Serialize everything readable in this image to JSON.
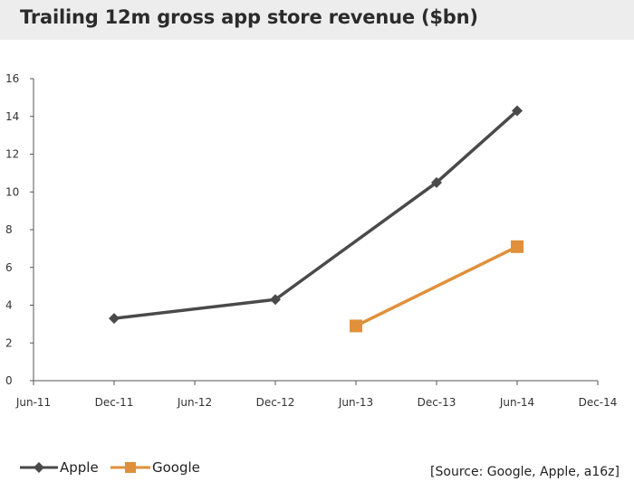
{
  "title": "Trailing 12m gross app store revenue ($bn)",
  "source": "[Source: Google, Apple, a16z]",
  "colors": {
    "apple": "#4a4a4a",
    "google": "#e0903a",
    "title_band": "#ededed"
  },
  "chart_data": {
    "type": "line",
    "title": "Trailing 12m gross app store revenue ($bn)",
    "xlabel": "",
    "ylabel": "",
    "x_ticks": [
      "Jun-11",
      "Dec-11",
      "Jun-12",
      "Dec-12",
      "Jun-13",
      "Dec-13",
      "Jun-14",
      "Dec-14"
    ],
    "ylim": [
      0,
      16
    ],
    "y_ticks": [
      0,
      2,
      4,
      6,
      8,
      10,
      12,
      14,
      16
    ],
    "grid": false,
    "legend": "bottom-left",
    "series": [
      {
        "name": "Apple",
        "marker": "diamond",
        "color": "#4a4a4a",
        "points": [
          {
            "x": "Dec-11",
            "y": 3.3
          },
          {
            "x": "Dec-12",
            "y": 4.3
          },
          {
            "x": "Dec-13",
            "y": 10.5
          },
          {
            "x": "Jun-14",
            "y": 14.3
          }
        ]
      },
      {
        "name": "Google",
        "marker": "square",
        "color": "#e0903a",
        "points": [
          {
            "x": "Jun-13",
            "y": 2.9
          },
          {
            "x": "Jun-14",
            "y": 7.1
          }
        ]
      }
    ]
  }
}
